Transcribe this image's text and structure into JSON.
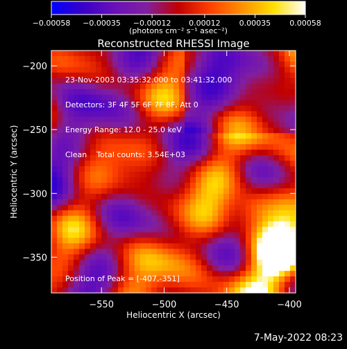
{
  "chart_data": {
    "type": "heatmap",
    "title": "Reconstructed RHESSI Image",
    "xlabel": "Heliocentric X (arcsec)",
    "ylabel": "Heliocentric Y (arcsec)",
    "xlim": [
      -590,
      -395
    ],
    "ylim": [
      -378,
      -188
    ],
    "x_ticks": [
      -550,
      -500,
      -450,
      -400
    ],
    "y_ticks": [
      -200,
      -250,
      -300,
      -350
    ],
    "x_tick_labels": [
      "−550",
      "−500",
      "−450",
      "−400"
    ],
    "y_tick_labels": [
      "−200",
      "−250",
      "−300",
      "−350"
    ],
    "colorbar": {
      "min": -0.00058,
      "max": 0.00058,
      "ticks": [
        -0.00058,
        -0.00035,
        -0.00012,
        0.00012,
        0.00035,
        0.00058
      ],
      "tick_labels": [
        "−0.00058",
        "−0.00035",
        "−0.00012",
        "0.00012",
        "0.00035",
        "0.00058"
      ],
      "unit_label": "(photons cm⁻² s⁻¹ asec⁻²)",
      "colors": [
        "#0000ff",
        "#3a00c8",
        "#6a10b8",
        "#8020a0",
        "#c00000",
        "#ff4000",
        "#ff9000",
        "#ffe000",
        "#ffffff"
      ]
    },
    "info_lines": [
      "23-Nov-2003 03:35:32.000 to 03:41:32.000",
      "Detectors: 3F 4F 5F 6F 7F 8F, Att 0",
      "Energy Range: 12.0 - 25.0 keV",
      "Clean    Total counts: 3.54E+03"
    ],
    "peak_label": "Position of Peak = [-407,-351]",
    "peak": [
      -407,
      -351
    ]
  },
  "footer": {
    "timestamp": "7-May-2022 08:23"
  }
}
